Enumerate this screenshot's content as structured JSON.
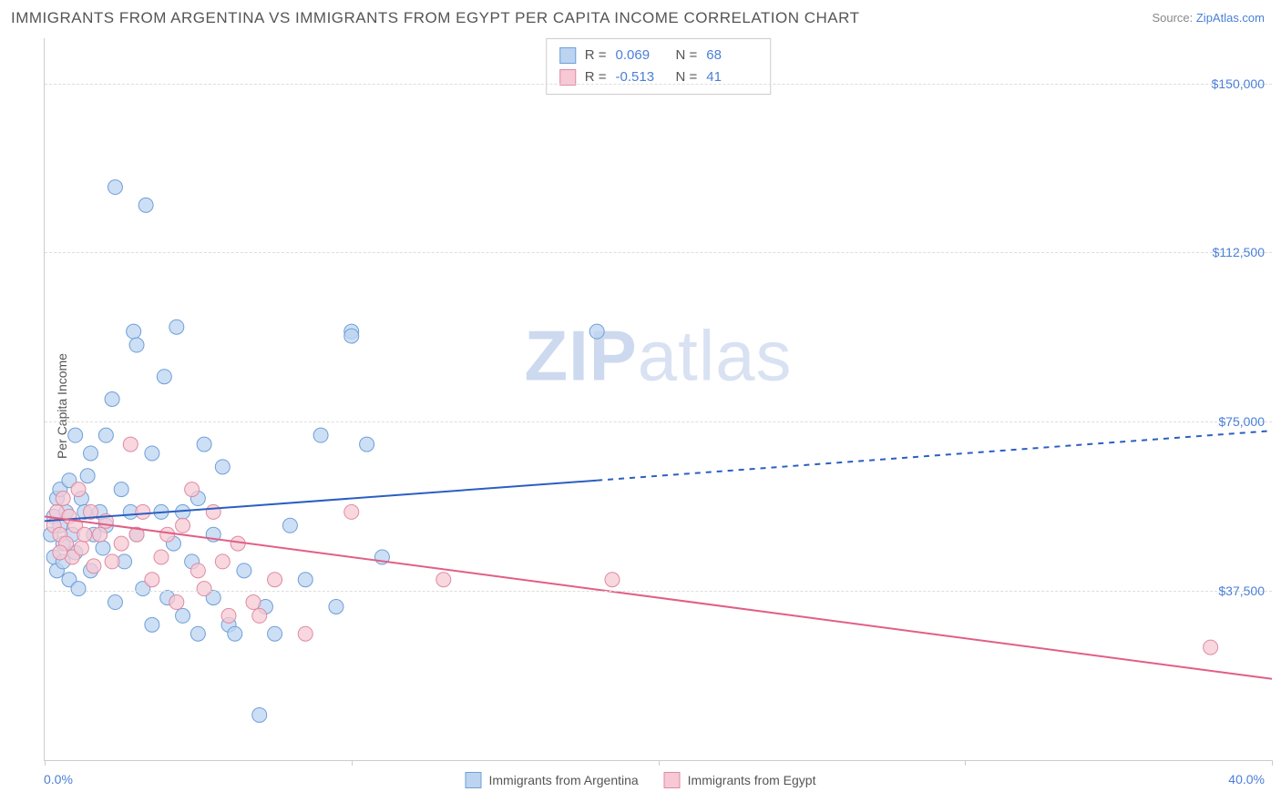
{
  "title": "IMMIGRANTS FROM ARGENTINA VS IMMIGRANTS FROM EGYPT PER CAPITA INCOME CORRELATION CHART",
  "source": {
    "prefix": "Source: ",
    "name": "ZipAtlas.com"
  },
  "watermark": {
    "part1": "ZIP",
    "part2": "atlas"
  },
  "ylabel": "Per Capita Income",
  "chart": {
    "type": "scatter-with-regression",
    "xlim": [
      0,
      40
    ],
    "ylim": [
      0,
      160000
    ],
    "x_axis": {
      "min_label": "0.0%",
      "max_label": "40.0%",
      "tick_positions_pct": [
        0,
        10,
        20,
        30,
        40
      ]
    },
    "y_axis": {
      "gridlines": [
        37500,
        75000,
        112500,
        150000
      ],
      "labels": [
        "$37,500",
        "$75,000",
        "$112,500",
        "$150,000"
      ]
    },
    "background_color": "#ffffff",
    "grid_color": "#dddddd",
    "axis_color": "#cccccc",
    "series": [
      {
        "name": "Immigrants from Argentina",
        "marker_fill": "#bcd4f0",
        "marker_stroke": "#6f9fd8",
        "marker_radius": 8,
        "marker_opacity": 0.75,
        "line_color": "#2b5fc1",
        "line_width": 2,
        "R": 0.069,
        "N": 68,
        "regression": {
          "x1": 0,
          "y1": 53000,
          "x2_solid": 18,
          "y2_solid": 62000,
          "x2": 40,
          "y2": 73000
        },
        "points": [
          [
            0.2,
            50000
          ],
          [
            0.3,
            54000
          ],
          [
            0.3,
            45000
          ],
          [
            0.4,
            58000
          ],
          [
            0.4,
            42000
          ],
          [
            0.5,
            52000
          ],
          [
            0.5,
            60000
          ],
          [
            0.6,
            48000
          ],
          [
            0.6,
            44000
          ],
          [
            0.7,
            55000
          ],
          [
            0.8,
            40000
          ],
          [
            0.8,
            62000
          ],
          [
            0.9,
            50000
          ],
          [
            1.0,
            72000
          ],
          [
            1.0,
            46000
          ],
          [
            1.1,
            38000
          ],
          [
            1.2,
            58000
          ],
          [
            1.3,
            55000
          ],
          [
            1.4,
            63000
          ],
          [
            1.5,
            68000
          ],
          [
            1.5,
            42000
          ],
          [
            1.6,
            50000
          ],
          [
            1.8,
            55000
          ],
          [
            1.9,
            47000
          ],
          [
            2.0,
            72000
          ],
          [
            2.0,
            52000
          ],
          [
            2.2,
            80000
          ],
          [
            2.3,
            35000
          ],
          [
            2.3,
            127000
          ],
          [
            2.5,
            60000
          ],
          [
            2.6,
            44000
          ],
          [
            2.8,
            55000
          ],
          [
            2.9,
            95000
          ],
          [
            3.0,
            50000
          ],
          [
            3.0,
            92000
          ],
          [
            3.2,
            38000
          ],
          [
            3.3,
            123000
          ],
          [
            3.5,
            68000
          ],
          [
            3.5,
            30000
          ],
          [
            3.8,
            55000
          ],
          [
            3.9,
            85000
          ],
          [
            4.0,
            36000
          ],
          [
            4.2,
            48000
          ],
          [
            4.3,
            96000
          ],
          [
            4.5,
            55000
          ],
          [
            4.5,
            32000
          ],
          [
            4.8,
            44000
          ],
          [
            5.0,
            58000
          ],
          [
            5.0,
            28000
          ],
          [
            5.2,
            70000
          ],
          [
            5.5,
            36000
          ],
          [
            5.5,
            50000
          ],
          [
            5.8,
            65000
          ],
          [
            6.0,
            30000
          ],
          [
            6.2,
            28000
          ],
          [
            6.5,
            42000
          ],
          [
            7.0,
            10000
          ],
          [
            7.2,
            34000
          ],
          [
            7.5,
            28000
          ],
          [
            8.0,
            52000
          ],
          [
            8.5,
            40000
          ],
          [
            9.0,
            72000
          ],
          [
            9.5,
            34000
          ],
          [
            10.0,
            95000
          ],
          [
            10.0,
            94000
          ],
          [
            10.5,
            70000
          ],
          [
            11.0,
            45000
          ],
          [
            18.0,
            95000
          ]
        ]
      },
      {
        "name": "Immigrants from Egypt",
        "marker_fill": "#f6c9d4",
        "marker_stroke": "#e08aa2",
        "marker_radius": 8,
        "marker_opacity": 0.75,
        "line_color": "#e15f85",
        "line_width": 2,
        "R": -0.513,
        "N": 41,
        "regression": {
          "x1": 0,
          "y1": 54000,
          "x2_solid": 40,
          "y2_solid": 18000,
          "x2": 40,
          "y2": 18000
        },
        "points": [
          [
            0.3,
            52000
          ],
          [
            0.4,
            55000
          ],
          [
            0.5,
            50000
          ],
          [
            0.6,
            58000
          ],
          [
            0.7,
            48000
          ],
          [
            0.8,
            54000
          ],
          [
            0.9,
            45000
          ],
          [
            1.0,
            52000
          ],
          [
            1.1,
            60000
          ],
          [
            1.2,
            47000
          ],
          [
            1.3,
            50000
          ],
          [
            1.5,
            55000
          ],
          [
            1.6,
            43000
          ],
          [
            1.8,
            50000
          ],
          [
            2.0,
            53000
          ],
          [
            2.2,
            44000
          ],
          [
            2.5,
            48000
          ],
          [
            2.8,
            70000
          ],
          [
            3.0,
            50000
          ],
          [
            3.2,
            55000
          ],
          [
            3.5,
            40000
          ],
          [
            3.8,
            45000
          ],
          [
            4.0,
            50000
          ],
          [
            4.3,
            35000
          ],
          [
            4.5,
            52000
          ],
          [
            4.8,
            60000
          ],
          [
            5.0,
            42000
          ],
          [
            5.2,
            38000
          ],
          [
            5.5,
            55000
          ],
          [
            5.8,
            44000
          ],
          [
            6.0,
            32000
          ],
          [
            6.3,
            48000
          ],
          [
            6.8,
            35000
          ],
          [
            7.0,
            32000
          ],
          [
            7.5,
            40000
          ],
          [
            8.5,
            28000
          ],
          [
            10.0,
            55000
          ],
          [
            13.0,
            40000
          ],
          [
            18.5,
            40000
          ],
          [
            38.0,
            25000
          ],
          [
            0.5,
            46000
          ]
        ]
      }
    ],
    "rn_box": {
      "rows": [
        {
          "swatch_fill": "#bcd4f0",
          "swatch_stroke": "#6f9fd8",
          "r_label": "R  =",
          "r_value": "0.069",
          "n_label": "N  =",
          "n_value": "68"
        },
        {
          "swatch_fill": "#f6c9d4",
          "swatch_stroke": "#e08aa2",
          "r_label": "R  =",
          "r_value": "-0.513",
          "n_label": "N  =",
          "n_value": "41"
        }
      ]
    },
    "bottom_legend": [
      {
        "swatch_fill": "#bcd4f0",
        "swatch_stroke": "#6f9fd8",
        "label": "Immigrants from Argentina"
      },
      {
        "swatch_fill": "#f6c9d4",
        "swatch_stroke": "#e08aa2",
        "label": "Immigrants from Egypt"
      }
    ]
  }
}
